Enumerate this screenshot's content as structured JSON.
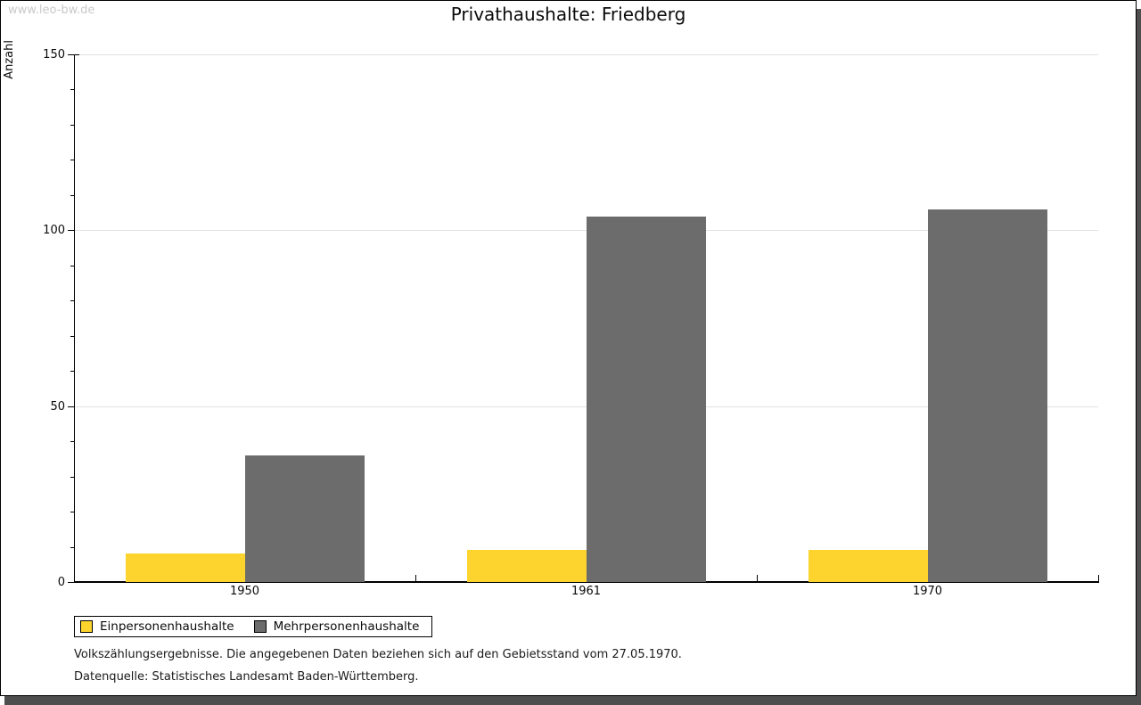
{
  "watermark": "www.leo-bw.de",
  "title": "Privathaushalte: Friedberg",
  "chart_data": {
    "type": "bar",
    "title": "Privathaushalte: Friedberg",
    "categories": [
      "1950",
      "1961",
      "1970"
    ],
    "series": [
      {
        "name": "Einpersonenhaushalte",
        "color": "#FCD42D",
        "values": [
          8,
          9,
          9
        ]
      },
      {
        "name": "Mehrpersonenhaushalte",
        "color": "#6C6C6C",
        "values": [
          36,
          104,
          106
        ]
      }
    ],
    "xlabel": "",
    "ylabel": "Anzahl",
    "ylim": [
      0,
      150
    ],
    "yticks": [
      0,
      50,
      100,
      150
    ],
    "minor_tick_step": 10,
    "grid": true,
    "legend_position": "bottom-left"
  },
  "footnotes": {
    "line1": "Volkszählungsergebnisse. Die angegebenen Daten beziehen sich auf den Gebietsstand vom 27.05.1970.",
    "line2": "Datenquelle: Statistisches Landesamt Baden-Württemberg."
  },
  "colors": {
    "series1": "#FCD42D",
    "series2": "#6C6C6C",
    "gridline": "#e2e2e2",
    "axis": "#000000",
    "watermark": "#c9c9c9",
    "frame_shadow": "#4e4e4e"
  }
}
